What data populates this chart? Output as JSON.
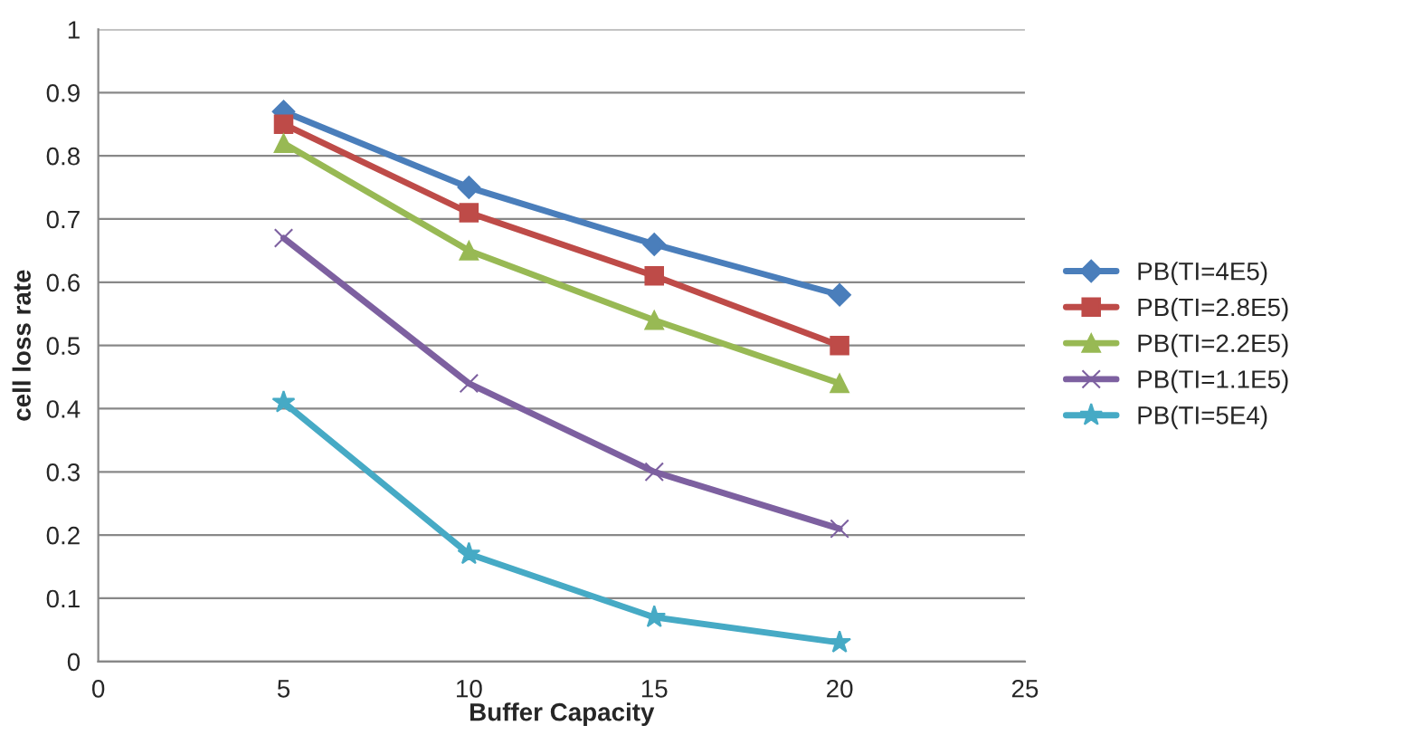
{
  "chart_data": {
    "type": "line",
    "xlabel": "Buffer Capacity",
    "ylabel": "cell loss rate",
    "x": [
      5,
      10,
      15,
      20
    ],
    "series": [
      {
        "name": "PB(TI=4E5)",
        "color": "#4a7ebb",
        "marker": "diamond",
        "values": [
          0.87,
          0.75,
          0.66,
          0.58
        ]
      },
      {
        "name": "PB(TI=2.8E5)",
        "color": "#be4b48",
        "marker": "square",
        "values": [
          0.85,
          0.71,
          0.61,
          0.5
        ]
      },
      {
        "name": "PB(TI=2.2E5)",
        "color": "#98b954",
        "marker": "triangle",
        "values": [
          0.82,
          0.65,
          0.54,
          0.44
        ]
      },
      {
        "name": "PB(TI=1.1E5)",
        "color": "#7d60a0",
        "marker": "cross",
        "values": [
          0.67,
          0.44,
          0.3,
          0.21
        ]
      },
      {
        "name": "PB(TI=5E4)",
        "color": "#46aac5",
        "marker": "star",
        "values": [
          0.41,
          0.17,
          0.07,
          0.03
        ]
      }
    ],
    "xlim": [
      0,
      25
    ],
    "xticks": [
      0,
      5,
      10,
      15,
      20,
      25
    ],
    "ylim": [
      0,
      1
    ],
    "yticks": [
      0,
      0.1,
      0.2,
      0.3,
      0.4,
      0.5,
      0.6,
      0.7,
      0.8,
      0.9,
      1
    ],
    "grid": "y",
    "legend": "right"
  }
}
